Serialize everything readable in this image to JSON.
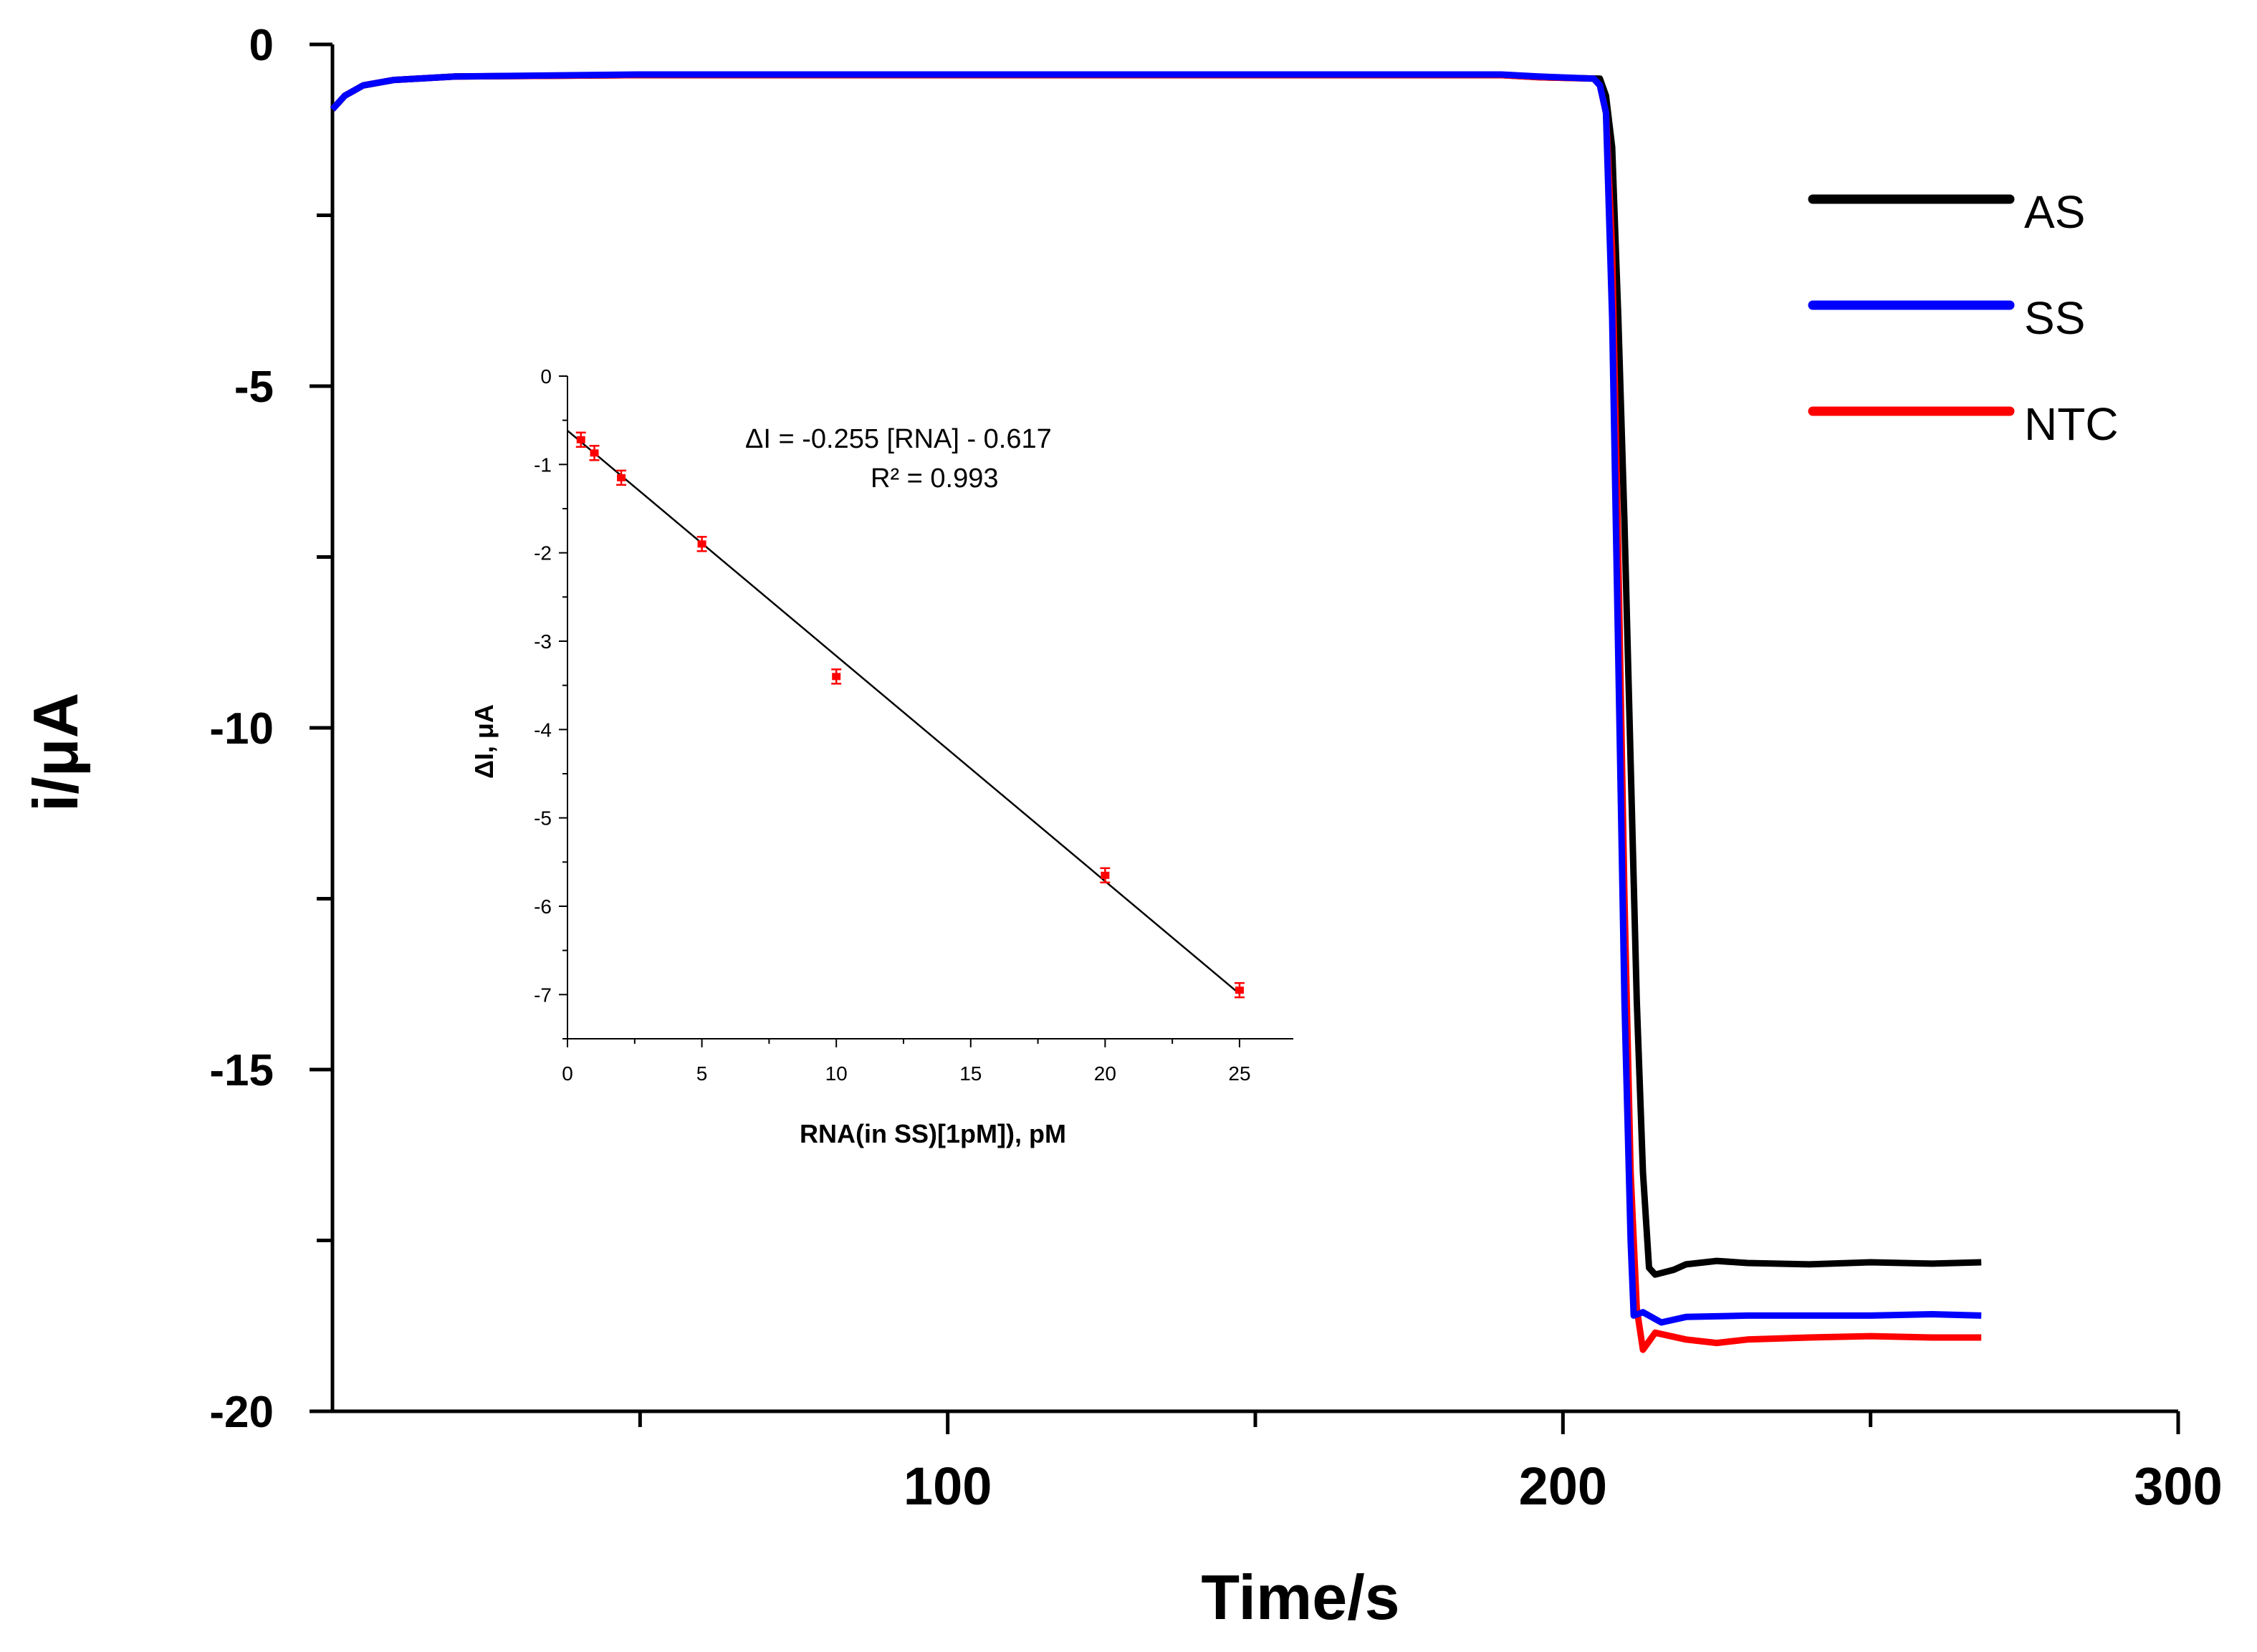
{
  "chart_data": [
    {
      "type": "line",
      "xlabel": "Time/s",
      "ylabel": "i/μA",
      "xlim": [
        0,
        300
      ],
      "ylim": [
        -20,
        0
      ],
      "x_ticks": [
        100,
        200,
        300
      ],
      "y_ticks": [
        0,
        -5,
        -10,
        -15,
        -20
      ],
      "legend_position": "top-right",
      "series": [
        {
          "name": "AS",
          "color": "#000000",
          "points": [
            [
              0,
              -0.95
            ],
            [
              2,
              -0.75
            ],
            [
              5,
              -0.6
            ],
            [
              10,
              -0.52
            ],
            [
              20,
              -0.47
            ],
            [
              50,
              -0.45
            ],
            [
              100,
              -0.45
            ],
            [
              150,
              -0.45
            ],
            [
              190,
              -0.45
            ],
            [
              196,
              -0.48
            ],
            [
              206,
              -0.5
            ],
            [
              207,
              -0.75
            ],
            [
              208,
              -1.5
            ],
            [
              209,
              -4.0
            ],
            [
              210,
              -7.0
            ],
            [
              211,
              -10.5
            ],
            [
              212,
              -14.0
            ],
            [
              213,
              -16.5
            ],
            [
              214,
              -17.9
            ],
            [
              215,
              -18.0
            ],
            [
              218,
              -17.93
            ],
            [
              220,
              -17.85
            ],
            [
              225,
              -17.8
            ],
            [
              230,
              -17.83
            ],
            [
              240,
              -17.85
            ],
            [
              250,
              -17.82
            ],
            [
              260,
              -17.84
            ],
            [
              268,
              -17.82
            ]
          ]
        },
        {
          "name": "SS",
          "color": "#0000ff",
          "points": [
            [
              0,
              -0.95
            ],
            [
              2,
              -0.75
            ],
            [
              5,
              -0.6
            ],
            [
              10,
              -0.52
            ],
            [
              20,
              -0.47
            ],
            [
              50,
              -0.44
            ],
            [
              100,
              -0.44
            ],
            [
              150,
              -0.44
            ],
            [
              190,
              -0.44
            ],
            [
              196,
              -0.47
            ],
            [
              205,
              -0.5
            ],
            [
              206,
              -0.6
            ],
            [
              207,
              -1.0
            ],
            [
              208,
              -4.0
            ],
            [
              209,
              -9.0
            ],
            [
              210,
              -14.0
            ],
            [
              211,
              -17.5
            ],
            [
              211.5,
              -18.6
            ],
            [
              213,
              -18.55
            ],
            [
              216,
              -18.7
            ],
            [
              220,
              -18.62
            ],
            [
              230,
              -18.6
            ],
            [
              240,
              -18.6
            ],
            [
              250,
              -18.6
            ],
            [
              260,
              -18.58
            ],
            [
              268,
              -18.6
            ]
          ]
        },
        {
          "name": "NTC",
          "color": "#ff0000",
          "points": [
            [
              0,
              -0.95
            ],
            [
              2,
              -0.75
            ],
            [
              5,
              -0.6
            ],
            [
              10,
              -0.52
            ],
            [
              20,
              -0.47
            ],
            [
              50,
              -0.45
            ],
            [
              100,
              -0.45
            ],
            [
              150,
              -0.45
            ],
            [
              190,
              -0.45
            ],
            [
              196,
              -0.48
            ],
            [
              205,
              -0.5
            ],
            [
              206,
              -0.6
            ],
            [
              207,
              -1.0
            ],
            [
              208,
              -3.0
            ],
            [
              209,
              -7.5
            ],
            [
              210,
              -12.5
            ],
            [
              211,
              -16.5
            ],
            [
              212,
              -18.5
            ],
            [
              213,
              -19.1
            ],
            [
              215,
              -18.85
            ],
            [
              220,
              -18.95
            ],
            [
              225,
              -19.0
            ],
            [
              230,
              -18.95
            ],
            [
              240,
              -18.92
            ],
            [
              250,
              -18.9
            ],
            [
              260,
              -18.92
            ],
            [
              268,
              -18.92
            ]
          ]
        }
      ]
    },
    {
      "type": "scatter",
      "xlabel": "RNA(in SS)[1pM]), pM",
      "ylabel": "ΔI, μA",
      "xlim": [
        0,
        27
      ],
      "ylim": [
        -7.5,
        0
      ],
      "x_ticks": [
        0,
        5,
        10,
        15,
        20,
        25
      ],
      "y_ticks": [
        0,
        -1,
        -2,
        -3,
        -4,
        -5,
        -6,
        -7
      ],
      "annotation_equation": "ΔI = -0.255 [RNA] - 0.617",
      "annotation_r2": "R² = 0.993",
      "points": [
        {
          "x": 0.5,
          "y": -0.72
        },
        {
          "x": 1,
          "y": -0.87
        },
        {
          "x": 2,
          "y": -1.15
        },
        {
          "x": 5,
          "y": -1.9
        },
        {
          "x": 10,
          "y": -3.4
        },
        {
          "x": 20,
          "y": -5.65
        },
        {
          "x": 25,
          "y": -6.95
        }
      ],
      "fit_line": {
        "slope": -0.255,
        "intercept": -0.617,
        "x_range": [
          0,
          25
        ]
      }
    }
  ],
  "colors": {
    "points": "#ff0000",
    "fit_line": "#000000"
  }
}
